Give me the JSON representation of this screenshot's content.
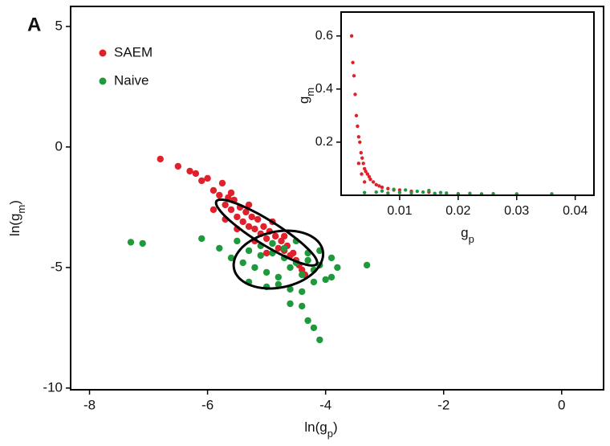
{
  "panel_label": "A",
  "chart_data": [
    {
      "type": "scatter",
      "x_label": {
        "text": "ln(g",
        "sub": "p",
        "tail": ")"
      },
      "y_label": {
        "text": "ln(g",
        "sub": "m",
        "tail": ")"
      },
      "xlim": [
        -8.32,
        0.71
      ],
      "ylim": [
        -10.07,
        5.83
      ],
      "xticks": [
        -8,
        -6,
        -4,
        -2,
        0
      ],
      "yticks": [
        -10,
        -5,
        0,
        5
      ],
      "legend_position": "upper left",
      "series": [
        {
          "name": "SAEM",
          "color": "#e0202a",
          "x": [
            -6.8,
            -6.5,
            -6.3,
            -6.1,
            -6.0,
            -5.9,
            -5.8,
            -5.75,
            -5.7,
            -5.65,
            -5.6,
            -5.55,
            -5.5,
            -5.45,
            -5.4,
            -5.35,
            -5.3,
            -5.25,
            -5.2,
            -5.15,
            -5.1,
            -5.05,
            -5.0,
            -4.95,
            -4.9,
            -4.85,
            -4.8,
            -4.75,
            -4.7,
            -4.65,
            -4.6,
            -4.55,
            -4.5,
            -4.45,
            -4.4,
            -4.35,
            -5.9,
            -5.5,
            -5.2,
            -5.0,
            -5.6,
            -5.3,
            -4.9,
            -4.7,
            -6.2,
            -5.7
          ],
          "values": [
            -0.5,
            -0.8,
            -1.0,
            -1.4,
            -1.3,
            -1.8,
            -2.0,
            -1.5,
            -2.4,
            -2.1,
            -2.6,
            -2.2,
            -2.9,
            -2.5,
            -3.1,
            -2.7,
            -3.3,
            -2.9,
            -3.4,
            -3.0,
            -3.6,
            -3.3,
            -3.8,
            -3.5,
            -4.0,
            -3.7,
            -4.2,
            -3.9,
            -4.3,
            -4.1,
            -4.5,
            -4.4,
            -4.7,
            -4.9,
            -5.1,
            -5.3,
            -2.6,
            -3.4,
            -3.9,
            -4.4,
            -1.9,
            -2.4,
            -3.1,
            -3.7,
            -1.1,
            -3.0
          ]
        },
        {
          "name": "Naive",
          "color": "#1e9a3c",
          "x": [
            -7.3,
            -7.1,
            -6.1,
            -5.8,
            -5.6,
            -5.5,
            -5.4,
            -5.3,
            -5.2,
            -5.1,
            -5.0,
            -4.9,
            -4.8,
            -4.7,
            -4.6,
            -4.5,
            -4.4,
            -4.3,
            -4.2,
            -4.1,
            -4.0,
            -3.9,
            -3.8,
            -3.3,
            -5.3,
            -5.0,
            -4.8,
            -4.6,
            -4.4,
            -4.2,
            -5.1,
            -4.9,
            -4.7,
            -4.5,
            -4.3,
            -4.1,
            -4.4,
            -4.6,
            -4.3,
            -4.1,
            -4.2,
            -3.9
          ],
          "values": [
            -3.95,
            -4.0,
            -3.8,
            -4.2,
            -4.6,
            -3.9,
            -4.8,
            -4.3,
            -5.0,
            -4.5,
            -5.2,
            -4.4,
            -5.4,
            -4.6,
            -5.0,
            -4.8,
            -5.3,
            -4.7,
            -5.1,
            -4.9,
            -5.5,
            -4.6,
            -5.0,
            -4.9,
            -5.6,
            -5.8,
            -5.7,
            -5.9,
            -6.0,
            -5.6,
            -4.1,
            -4.0,
            -4.2,
            -3.9,
            -4.4,
            -4.3,
            -6.6,
            -6.5,
            -7.2,
            -8.0,
            -7.5,
            -5.4
          ]
        }
      ],
      "ellipses": [
        {
          "color": "#000000",
          "center": [
            -5.0,
            -3.55
          ],
          "axis1": [
            0.85,
            -1.3
          ],
          "axis2": [
            -0.11,
            -0.42
          ]
        },
        {
          "color": "#000000",
          "center": [
            -4.8,
            -4.67
          ],
          "axis1": [
            0.75,
            0.4
          ],
          "axis2": [
            0.11,
            -1.13
          ]
        }
      ]
    },
    {
      "type": "scatter",
      "x_label": {
        "text": "g",
        "sub": "p"
      },
      "y_label": {
        "text": "g",
        "sub": "m"
      },
      "xlim": [
        0,
        0.0432
      ],
      "ylim": [
        0,
        0.69
      ],
      "xticks": [
        0.01,
        0.02,
        0.03,
        0.04
      ],
      "yticks": [
        0.2,
        0.4,
        0.6
      ],
      "series": [
        {
          "name": "SAEM",
          "color": "#e0202a",
          "x": [
            0.0018,
            0.002,
            0.0022,
            0.0024,
            0.0026,
            0.0028,
            0.003,
            0.0032,
            0.0034,
            0.0036,
            0.0038,
            0.004,
            0.0042,
            0.0045,
            0.0048,
            0.005,
            0.0055,
            0.006,
            0.0065,
            0.007,
            0.008,
            0.009,
            0.01,
            0.012,
            0.015,
            0.003,
            0.0035,
            0.004
          ],
          "values": [
            0.6,
            0.5,
            0.45,
            0.38,
            0.3,
            0.26,
            0.22,
            0.2,
            0.16,
            0.14,
            0.12,
            0.1,
            0.09,
            0.08,
            0.07,
            0.06,
            0.05,
            0.04,
            0.035,
            0.03,
            0.025,
            0.02,
            0.02,
            0.015,
            0.012,
            0.12,
            0.08,
            0.05
          ]
        },
        {
          "name": "Naive",
          "color": "#1e9a3c",
          "x": [
            0.004,
            0.006,
            0.008,
            0.01,
            0.012,
            0.014,
            0.016,
            0.018,
            0.02,
            0.022,
            0.024,
            0.026,
            0.03,
            0.036,
            0.011,
            0.013,
            0.015,
            0.009,
            0.007,
            0.017
          ],
          "values": [
            0.01,
            0.012,
            0.008,
            0.01,
            0.009,
            0.012,
            0.007,
            0.008,
            0.006,
            0.007,
            0.005,
            0.006,
            0.005,
            0.005,
            0.02,
            0.015,
            0.018,
            0.022,
            0.016,
            0.01
          ]
        }
      ]
    }
  ]
}
